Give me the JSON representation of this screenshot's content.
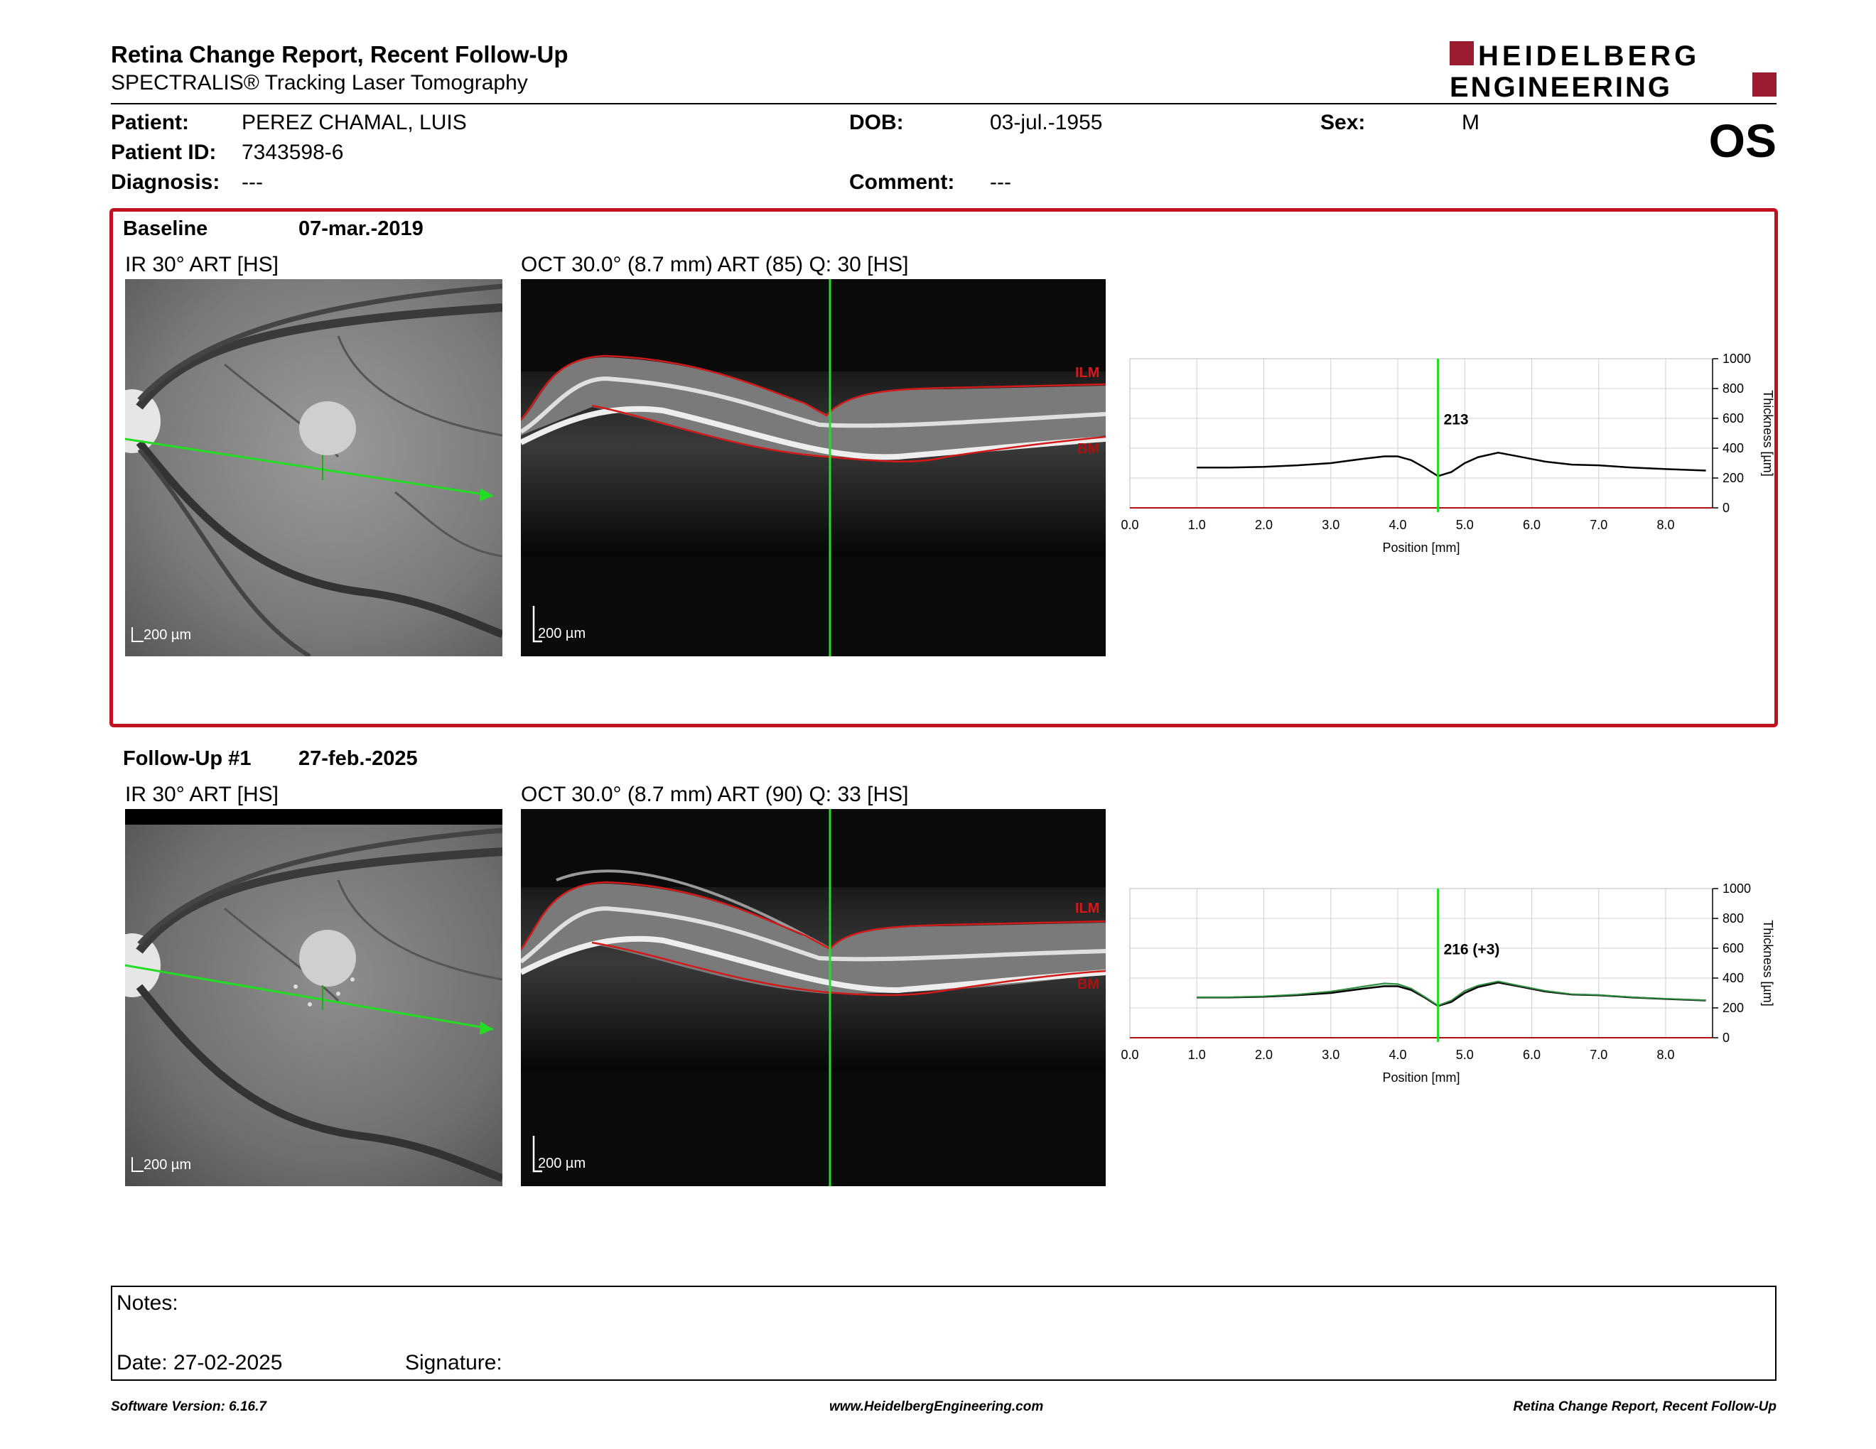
{
  "header": {
    "title": "Retina Change Report, Recent Follow-Up",
    "subtitle": "SPECTRALIS® Tracking Laser Tomography",
    "logo_line1": "HEIDELBERG",
    "logo_line2": "ENGINEERING",
    "eye": "OS"
  },
  "patient": {
    "patient_label": "Patient:",
    "patient_value": "PEREZ CHAMAL, LUIS",
    "id_label": "Patient ID:",
    "id_value": "7343598-6",
    "diagnosis_label": "Diagnosis:",
    "diagnosis_value": "---",
    "dob_label": "DOB:",
    "dob_value": "03-jul.-1955",
    "comment_label": "Comment:",
    "comment_value": "---",
    "sex_label": "Sex:",
    "sex_value": "M"
  },
  "exams": [
    {
      "label": "Baseline",
      "date": "07-mar.-2019",
      "ir_label": "IR 30° ART [HS]",
      "oct_label": "OCT 30.0° (8.7 mm) ART (85) Q: 30 [HS]",
      "scale_ir": "200 µm",
      "scale_oct": "200 µm",
      "layer_top": "ILM",
      "layer_bottom": "BM",
      "thickness_value": "213"
    },
    {
      "label": "Follow-Up #1",
      "date": "27-feb.-2025",
      "ir_label": "IR 30° ART [HS]",
      "oct_label": "OCT 30.0° (8.7 mm) ART (90) Q: 33 [HS]",
      "scale_ir": "200 µm",
      "scale_oct": "200 µm",
      "layer_top": "ILM",
      "layer_bottom": "BM",
      "thickness_value": "216 (+3)"
    }
  ],
  "chart_data": [
    {
      "type": "line",
      "xlabel": "Position [mm]",
      "ylabel": "Thickness [µm]",
      "xlim": [
        0,
        8.7
      ],
      "ylim": [
        0,
        1000
      ],
      "x_ticks": [
        "0.0",
        "1.0",
        "2.0",
        "3.0",
        "4.0",
        "5.0",
        "6.0",
        "7.0",
        "8.0"
      ],
      "y_ticks": [
        "0",
        "200",
        "400",
        "600",
        "800",
        "1000"
      ],
      "cursor_x": 4.6,
      "cursor_label": "213",
      "series": [
        {
          "x": [
            1.0,
            1.5,
            2.0,
            2.5,
            3.0,
            3.5,
            3.8,
            4.0,
            4.2,
            4.4,
            4.6,
            4.8,
            5.0,
            5.2,
            5.5,
            5.8,
            6.2,
            6.6,
            7.0,
            7.5,
            8.0,
            8.6
          ],
          "y": [
            270,
            270,
            275,
            285,
            300,
            330,
            345,
            345,
            320,
            270,
            213,
            240,
            300,
            340,
            370,
            345,
            310,
            290,
            285,
            270,
            260,
            250
          ],
          "color": "#000000"
        }
      ]
    },
    {
      "type": "line",
      "xlabel": "Position [mm]",
      "ylabel": "Thickness [µm]",
      "xlim": [
        0,
        8.7
      ],
      "ylim": [
        0,
        1000
      ],
      "x_ticks": [
        "0.0",
        "1.0",
        "2.0",
        "3.0",
        "4.0",
        "5.0",
        "6.0",
        "7.0",
        "8.0"
      ],
      "y_ticks": [
        "0",
        "200",
        "400",
        "600",
        "800",
        "1000"
      ],
      "cursor_x": 4.6,
      "cursor_label": "216 (+3)",
      "series": [
        {
          "x": [
            1.0,
            1.5,
            2.0,
            2.5,
            3.0,
            3.5,
            3.8,
            4.0,
            4.2,
            4.4,
            4.6,
            4.8,
            5.0,
            5.2,
            5.5,
            5.8,
            6.2,
            6.6,
            7.0,
            7.5,
            8.0,
            8.6
          ],
          "y": [
            270,
            270,
            275,
            285,
            300,
            330,
            345,
            345,
            320,
            270,
            213,
            240,
            300,
            340,
            370,
            345,
            310,
            290,
            285,
            270,
            260,
            250
          ],
          "color": "#000000"
        },
        {
          "x": [
            1.0,
            1.5,
            2.0,
            2.5,
            3.0,
            3.5,
            3.8,
            4.0,
            4.2,
            4.4,
            4.6,
            4.8,
            5.0,
            5.2,
            5.5,
            5.8,
            6.2,
            6.6,
            7.0,
            7.5,
            8.0,
            8.6
          ],
          "y": [
            272,
            272,
            278,
            290,
            310,
            345,
            365,
            360,
            330,
            275,
            216,
            250,
            315,
            350,
            378,
            350,
            315,
            292,
            287,
            272,
            262,
            252
          ],
          "color": "#2e8b3e"
        }
      ]
    }
  ],
  "notes": {
    "notes_label": "Notes:",
    "date_label": "Date: 27-02-2025",
    "signature_label": "Signature:"
  },
  "footer": {
    "software": "Software Version: 6.16.7",
    "website": "www.HeidelbergEngineering.com",
    "report_name": "Retina Change Report, Recent Follow-Up"
  }
}
